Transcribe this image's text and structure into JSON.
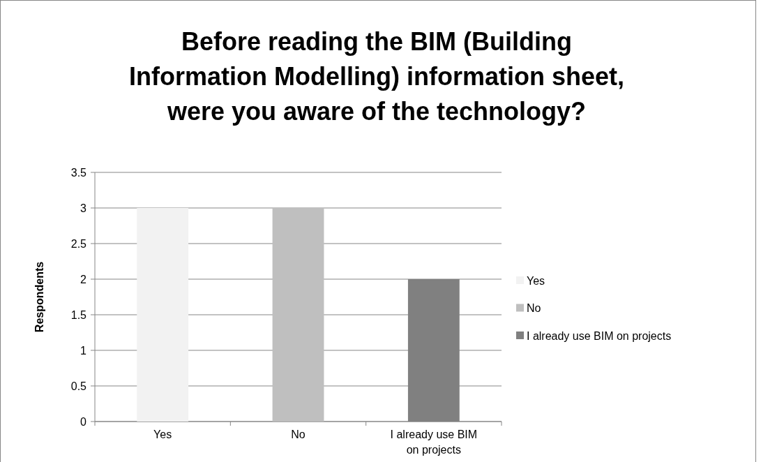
{
  "chart_data": {
    "type": "bar",
    "title": "Before reading the BIM (Building Information Modelling) information sheet, were you aware of the technology?",
    "ylabel": "Respondents",
    "categories": [
      "Yes",
      "No",
      "I already use BIM on projects"
    ],
    "series": [
      {
        "name": "Yes",
        "color": "#f2f2f2",
        "values": [
          3,
          null,
          null
        ]
      },
      {
        "name": "No",
        "color": "#bfbfbf",
        "values": [
          null,
          3,
          null
        ]
      },
      {
        "name": "I already use BIM on projects",
        "color": "#808080",
        "values": [
          null,
          null,
          2
        ]
      }
    ],
    "ylim": [
      0,
      3.5
    ],
    "yticks": [
      0,
      0.5,
      1,
      1.5,
      2,
      2.5,
      3,
      3.5
    ],
    "grid": "y",
    "legend": "right"
  }
}
